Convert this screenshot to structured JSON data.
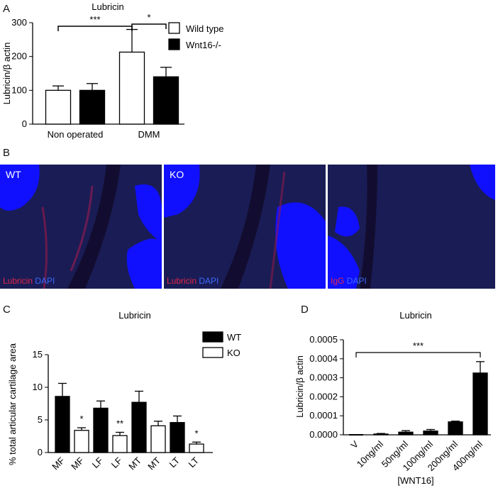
{
  "panels": {
    "A": {
      "letter": "A"
    },
    "B": {
      "letter": "B",
      "images": [
        {
          "corner": "WT",
          "stain1": "Lubricin",
          "stain2": "DAPI"
        },
        {
          "corner": "KO",
          "stain1": "Lubricin",
          "stain2": "DAPI"
        },
        {
          "corner": "",
          "stain1": "IgG",
          "stain2": "DAPI"
        }
      ]
    },
    "C": {
      "letter": "C"
    },
    "D": {
      "letter": "D"
    }
  },
  "chart_data": [
    {
      "panel": "A",
      "type": "bar",
      "title": "Lubricin",
      "ylabel": "Lubricin/β actin",
      "xlabel": "",
      "ylim": [
        0,
        300
      ],
      "yticks": [
        "0",
        "100",
        "200",
        "300"
      ],
      "categories": [
        "Non operated",
        "DMM"
      ],
      "series": [
        {
          "name": "Wild type",
          "color": "#ffffff",
          "values": [
            100,
            213
          ],
          "errors": [
            13,
            67
          ]
        },
        {
          "name": "Wnt16-/-",
          "color": "#000000",
          "values": [
            100,
            140
          ],
          "errors": [
            20,
            28
          ]
        }
      ],
      "legend": "top-right",
      "significance": [
        {
          "label": "***",
          "from": "Non operated / Wild type",
          "to": "DMM / Wild type"
        },
        {
          "label": "*",
          "from": "DMM / Wild type",
          "to": "DMM / Wnt16-/-"
        }
      ]
    },
    {
      "panel": "C",
      "type": "bar",
      "title": "Lubricin",
      "ylabel": "% total articular cartilage area",
      "xlabel": "",
      "ylim": [
        0,
        15
      ],
      "yticks": [
        "0",
        "5",
        "10",
        "15"
      ],
      "categories": [
        "MF",
        "MF",
        "LF",
        "LF",
        "MT",
        "MT",
        "LT",
        "LT"
      ],
      "values": [
        8.6,
        3.4,
        6.8,
        2.6,
        7.7,
        4.1,
        4.6,
        1.3
      ],
      "errors": [
        2.0,
        0.4,
        1.1,
        0.5,
        1.7,
        0.7,
        1.0,
        0.3
      ],
      "groups": [
        "WT",
        "KO",
        "WT",
        "KO",
        "WT",
        "KO",
        "WT",
        "KO"
      ],
      "series": [
        {
          "name": "WT",
          "color": "#000000"
        },
        {
          "name": "KO",
          "color": "#ffffff"
        }
      ],
      "significance": [
        "",
        "*",
        "",
        "**",
        "",
        "",
        "",
        "*"
      ],
      "legend": "top-right"
    },
    {
      "panel": "D",
      "type": "bar",
      "title": "Lubricin",
      "ylabel": "Lubricin/β actin",
      "xlabel": "[WNT16]",
      "ylim": [
        0,
        0.0005
      ],
      "yticks": [
        "0.0000",
        "0.0001",
        "0.0002",
        "0.0003",
        "0.0004",
        "0.0005"
      ],
      "categories": [
        "V",
        "10ng/ml",
        "50ng/ml",
        "100ng/ml",
        "200ng/ml",
        "400ng/ml"
      ],
      "values": [
        0,
        4e-06,
        1.4e-05,
        2e-05,
        6.8e-05,
        0.000325
      ],
      "errors": [
        0,
        3e-06,
        8e-06,
        8e-06,
        4e-06,
        6e-05
      ],
      "color": "#000000",
      "significance": [
        {
          "label": "***",
          "from": "V",
          "to": "400ng/ml"
        }
      ]
    }
  ]
}
